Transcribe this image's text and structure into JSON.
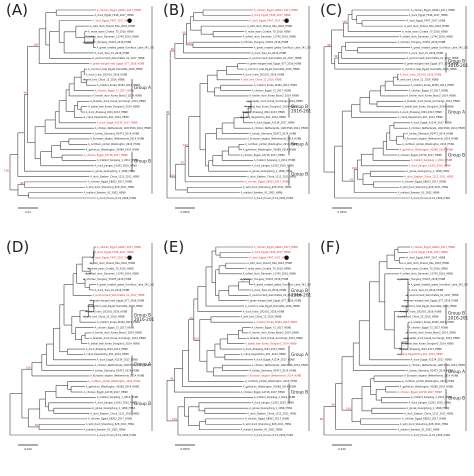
{
  "panels": [
    {
      "label": "(A)",
      "groups": [
        {
          "text": "Group A",
          "side": "right",
          "level": 0.58
        },
        {
          "text": "Group B",
          "side": "right",
          "level": 0.19
        }
      ],
      "scale": "0.01",
      "red_tips": [
        0,
        2,
        10,
        15,
        21,
        27
      ],
      "marker_tip": 2
    },
    {
      "label": "(B)",
      "groups": [
        {
          "text": "Group B 2016-2017",
          "side": "right",
          "level": 0.48
        },
        {
          "text": "Group A",
          "side": "right",
          "level": 0.28
        },
        {
          "text": "Group B",
          "side": "right",
          "level": 0.12
        }
      ],
      "scale": "0.0050",
      "red_tips": [
        0,
        1,
        2,
        13,
        32
      ],
      "marker_tip": 2
    },
    {
      "label": "(C)",
      "groups": [
        {
          "text": "Group B 2016-2017",
          "side": "right",
          "level": 0.72
        },
        {
          "text": "Group A",
          "side": "right",
          "level": 0.45
        },
        {
          "text": "Group B",
          "side": "right",
          "level": 0.22
        }
      ],
      "scale": "0.0050",
      "red_tips": [
        12,
        26,
        28,
        29,
        31
      ],
      "marker_tip": -1
    },
    {
      "label": "(D)",
      "groups": [
        {
          "text": "Group B 2016-2017",
          "side": "right",
          "level": 0.63
        },
        {
          "text": "Group A",
          "side": "right",
          "level": 0.37
        },
        {
          "text": "Group B",
          "side": "right",
          "level": 0.16
        }
      ],
      "scale": "0.010",
      "red_tips": [
        0,
        1,
        2,
        9,
        25
      ],
      "marker_tip": 2
    },
    {
      "label": "(E)",
      "groups": [
        {
          "text": "Group B 2016-2017",
          "side": "right",
          "level": 0.76
        },
        {
          "text": "Group A",
          "side": "right",
          "level": 0.42
        },
        {
          "text": "Group B",
          "side": "right",
          "level": 0.22
        }
      ],
      "scale": "0.0050",
      "red_tips": [
        0,
        1,
        2,
        14,
        18,
        24
      ],
      "marker_tip": 2
    },
    {
      "label": "(F)",
      "groups": [
        {
          "text": "Group B 2016-2017",
          "side": "right",
          "level": 0.64
        },
        {
          "text": "Group A",
          "side": "right",
          "level": 0.33
        },
        {
          "text": "Group B",
          "side": "right",
          "level": 0.19
        }
      ],
      "scale": "0.010",
      "red_tips": [
        0,
        1,
        20,
        27
      ],
      "marker_tip": -1
    }
  ],
  "tip_labels": [
    "A_chicken_Egypt_A0601_2017_H5N8",
    "A_duck_Egypt_F446_2017_H5N8",
    "A_duck_Egypt_F447_2017_H5N8",
    "A_wild_duck_Poland_82A_2016_H5N8",
    "A_mute_swan_Croatia_70_2016_H5N8",
    "A_tufted_duck_Denmark_11740_2016_H5N8",
    "A_Chicken_Hungary_53433_2016_H5N8",
    "A_great_crested_grebe_Uvs-Nuur_Lake_341_2016_H5N8",
    "A_duck_Tyva_01_2016_H5N8",
    "A_environment_Kamchatka_01_2017_H5N8",
    "A_green-winged_teal_Egypt_877_2016_H5N8",
    "A_common_teal_Egypt_Damietta_2016_H5N8",
    "A_duck_India_10CA01_2016_H5N8",
    "A_wild_bird_China_12_2016_H5N8",
    "A_mallard_Korea_W452_2014_H5N8",
    "A_chicken_Egypt_Y2_2017_H5N8",
    "A_broiler_duck_Korea_Buan2_2014_H5N8",
    "A_breeder_duck_Korea_Gochang1_2014_H5N8",
    "A_baikal_teal_Korea_Donglim3_2014_H5N8",
    "A_duck_Zhejiang_W24_2013_H5N8",
    "A_crane_Kagoshima_KU1_2014_H5N8",
    "A_duck_Egypt_A1234_2017_H5N8",
    "A_chicken_Netherlands_14015526_2014_H5N8",
    "A_turkey_Germany_R2472_2014_H5N8",
    "A_Eurasian_wigeon_Netherlands_2014_H5N8",
    "A_northern_pintail_Washington_2014_H5N2",
    "A_gyrfalcon_Washington_41088_2014_H5N8",
    "A_chicken_Egypt_A2718_2017_H5N8",
    "A_mallard_Sanjiang_1_2014_H5N8",
    "A_duck_Jiangsu_k1203_2010_H5N8",
    "A_goose_Guangdong_1_1996_H5N1",
    "A_duck_Eastern_China_1112_2011_H5N2",
    "A_chicken_Egypt_E8812_2017_H5N8",
    "A_wild_duck_Shandong_628_2011_H5N1",
    "A_mallard_Sweden_91_2002_H5N9",
    "A_duck_Hunan_8-19_2009_H4N2"
  ],
  "bootstrap_values": [
    "100",
    "99",
    "98",
    "100",
    "97",
    "100",
    "96",
    "99",
    "100",
    "95",
    "100",
    "98"
  ]
}
